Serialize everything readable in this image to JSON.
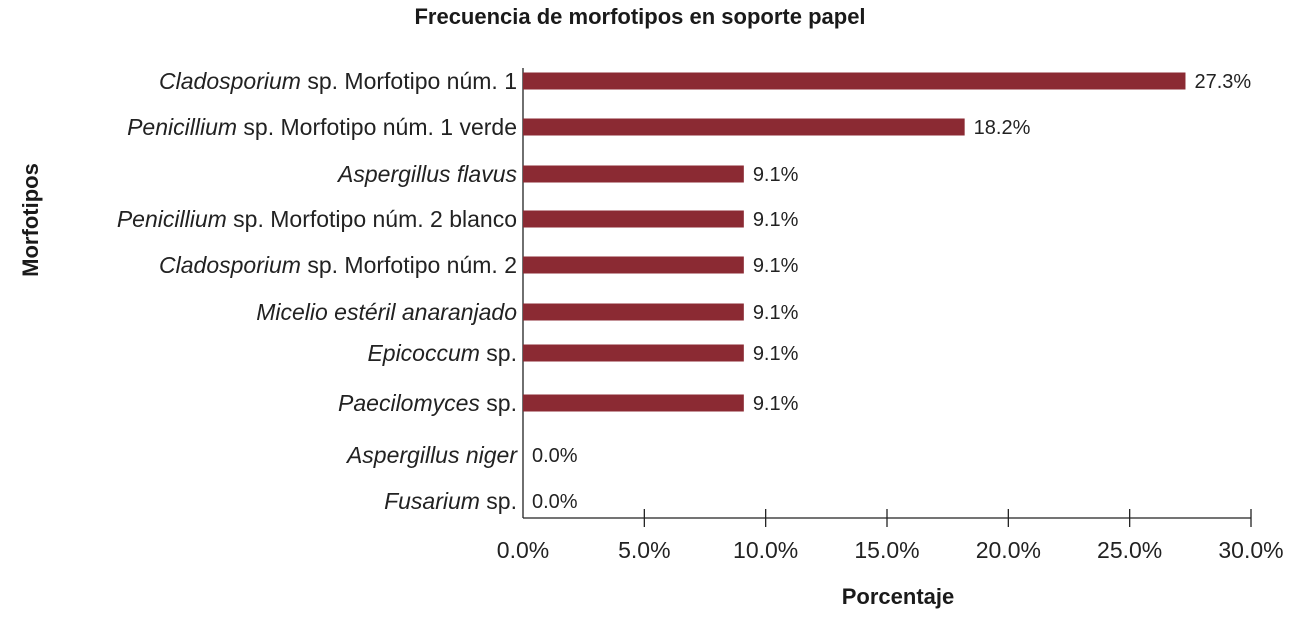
{
  "chart_data": {
    "type": "bar",
    "orientation": "horizontal",
    "title": "Frecuencia de morfotipos en soporte papel",
    "xlabel": "Porcentaje",
    "ylabel": "Morfotipos",
    "xlim": [
      0,
      30
    ],
    "ticks": [
      "0.0%",
      "5.0%",
      "10.0%",
      "15.0%",
      "20.0%",
      "25.0%",
      "30.0%"
    ],
    "tick_values": [
      0,
      5,
      10,
      15,
      20,
      25,
      30
    ],
    "grid": false,
    "bar_color": "#8b2a33",
    "categories": [
      {
        "italic": "Cladosporium",
        "rest": " sp. Morfotipo núm. 1"
      },
      {
        "italic": "Penicillium",
        "rest": " sp. Morfotipo núm. 1 verde"
      },
      {
        "italic": "Aspergillus flavus",
        "rest": ""
      },
      {
        "italic": "Penicillium",
        "rest": " sp. Morfotipo núm. 2 blanco"
      },
      {
        "italic": "Cladosporium",
        "rest": " sp. Morfotipo núm. 2"
      },
      {
        "italic": "Micelio estéril anaranjado",
        "rest": ""
      },
      {
        "italic": "Epicoccum",
        "rest": " sp."
      },
      {
        "italic": "Paecilomyces",
        "rest": " sp."
      },
      {
        "italic": "Aspergillus niger",
        "rest": ""
      },
      {
        "italic": "Fusarium",
        "rest": " sp."
      }
    ],
    "values": [
      27.3,
      18.2,
      9.1,
      9.1,
      9.1,
      9.1,
      9.1,
      9.1,
      0.0,
      0.0
    ],
    "data_labels": [
      "27.3%",
      "18.2%",
      "9.1%",
      "9.1%",
      "9.1%",
      "9.1%",
      "9.1%",
      "9.1%",
      "0.0%",
      "0.0%"
    ]
  }
}
